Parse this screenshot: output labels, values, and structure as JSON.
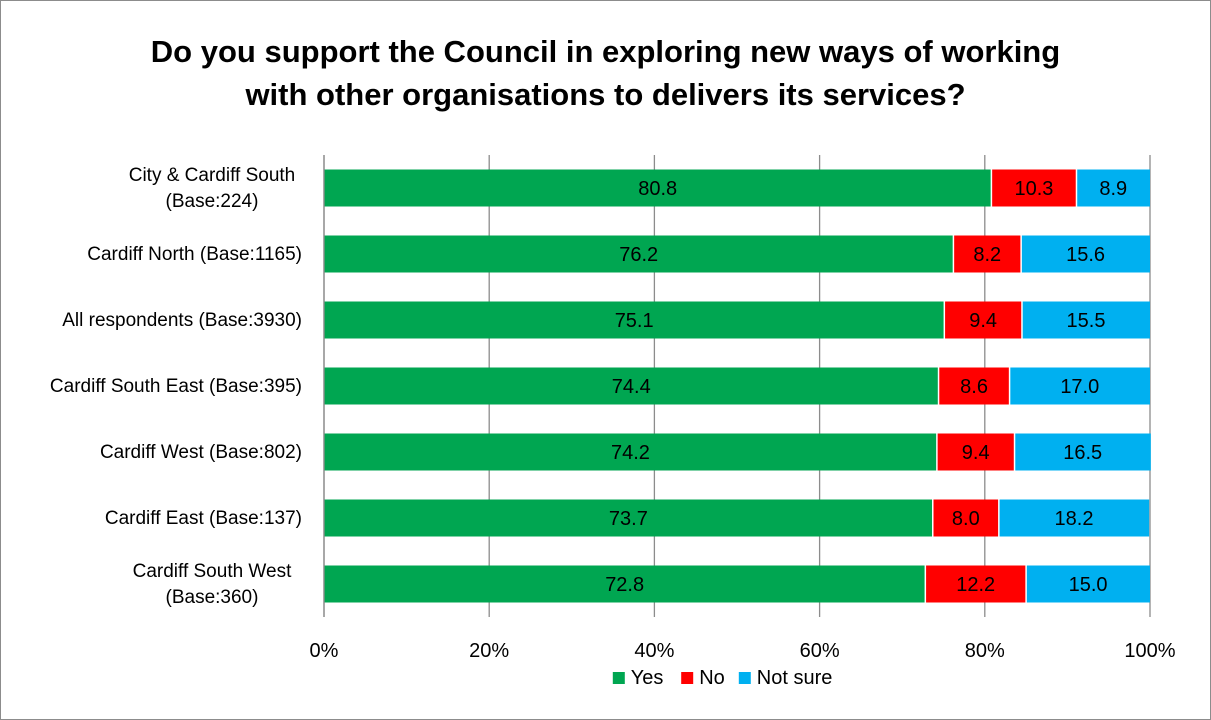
{
  "chart_data": {
    "type": "bar",
    "orientation": "horizontal",
    "stacked": true,
    "title_lines": [
      "Do you support the Council in exploring new ways of working",
      "with other organisations to delivers its services?"
    ],
    "categories": [
      [
        "City & Cardiff South",
        "(Base:224)"
      ],
      [
        "Cardiff North (Base:1165)"
      ],
      [
        "All respondents (Base:3930)"
      ],
      [
        "Cardiff South East (Base:395)"
      ],
      [
        "Cardiff West (Base:802)"
      ],
      [
        "Cardiff East (Base:137)"
      ],
      [
        "Cardiff South West",
        "(Base:360)"
      ]
    ],
    "series": [
      {
        "name": "Yes",
        "color": "#00a651",
        "values": [
          80.8,
          76.2,
          75.1,
          74.4,
          74.2,
          73.7,
          72.8
        ],
        "labels": [
          "80.8",
          "76.2",
          "75.1",
          "74.4",
          "74.2",
          "73.7",
          "72.8"
        ]
      },
      {
        "name": "No",
        "color": "#ff0000",
        "values": [
          10.3,
          8.2,
          9.4,
          8.6,
          9.4,
          8.0,
          12.2
        ],
        "labels": [
          "10.3",
          "8.2",
          "9.4",
          "8.6",
          "9.4",
          "8.0",
          "12.2"
        ]
      },
      {
        "name": "Not sure",
        "color": "#00b0f0",
        "values": [
          8.9,
          15.6,
          15.5,
          17.0,
          16.5,
          18.2,
          15.0
        ],
        "labels": [
          "8.9",
          "15.6",
          "15.5",
          "17.0",
          "16.5",
          "18.2",
          "15.0"
        ]
      }
    ],
    "x_ticks": [
      "0%",
      "20%",
      "40%",
      "60%",
      "80%",
      "100%"
    ],
    "xlim": [
      0,
      100
    ],
    "grid": true,
    "legend_position": "bottom"
  }
}
